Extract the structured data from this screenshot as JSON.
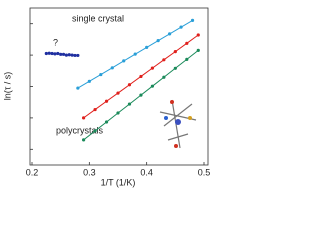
{
  "chart_data": {
    "type": "scatter",
    "x_label": "1/T (1/K)",
    "y_label": "ln(τ / s)",
    "xlim": [
      0.2,
      0.5
    ],
    "xticks": [
      0.2,
      0.3,
      0.4,
      0.5
    ],
    "ylim": [
      0,
      10
    ],
    "yticks": [
      1,
      3,
      5,
      7,
      9
    ],
    "annotations": [
      "single crystal",
      "?",
      "polycrystals"
    ],
    "series": [
      {
        "color": "#1f2fa0",
        "fit": false,
        "x": [
          0.225,
          0.23,
          0.235,
          0.24,
          0.245,
          0.25,
          0.255,
          0.26,
          0.265,
          0.27,
          0.275,
          0.28
        ],
        "values": [
          7.1,
          7.12,
          7.1,
          7.08,
          7.1,
          7.05,
          7.05,
          7.0,
          7.02,
          7.0,
          6.98,
          6.98
        ]
      },
      {
        "color": "#2a9fd8",
        "fit": true,
        "x": [
          0.28,
          0.3,
          0.32,
          0.34,
          0.36,
          0.38,
          0.4,
          0.42,
          0.44,
          0.46,
          0.48
        ],
        "values": [
          4.9,
          5.33,
          5.76,
          6.19,
          6.63,
          7.06,
          7.49,
          7.92,
          8.35,
          8.78,
          9.21
        ]
      },
      {
        "color": "#e0201c",
        "fit": true,
        "x": [
          0.29,
          0.31,
          0.33,
          0.35,
          0.37,
          0.39,
          0.41,
          0.43,
          0.45,
          0.47,
          0.49
        ],
        "values": [
          3.0,
          3.53,
          4.06,
          4.58,
          5.11,
          5.64,
          6.17,
          6.7,
          7.22,
          7.75,
          8.28
        ]
      },
      {
        "color": "#1a8a5a",
        "fit": true,
        "x": [
          0.29,
          0.31,
          0.33,
          0.35,
          0.37,
          0.39,
          0.41,
          0.43,
          0.45,
          0.47,
          0.49
        ],
        "values": [
          1.6,
          2.17,
          2.74,
          3.31,
          3.88,
          4.45,
          5.02,
          5.59,
          6.16,
          6.73,
          7.3
        ]
      }
    ]
  }
}
